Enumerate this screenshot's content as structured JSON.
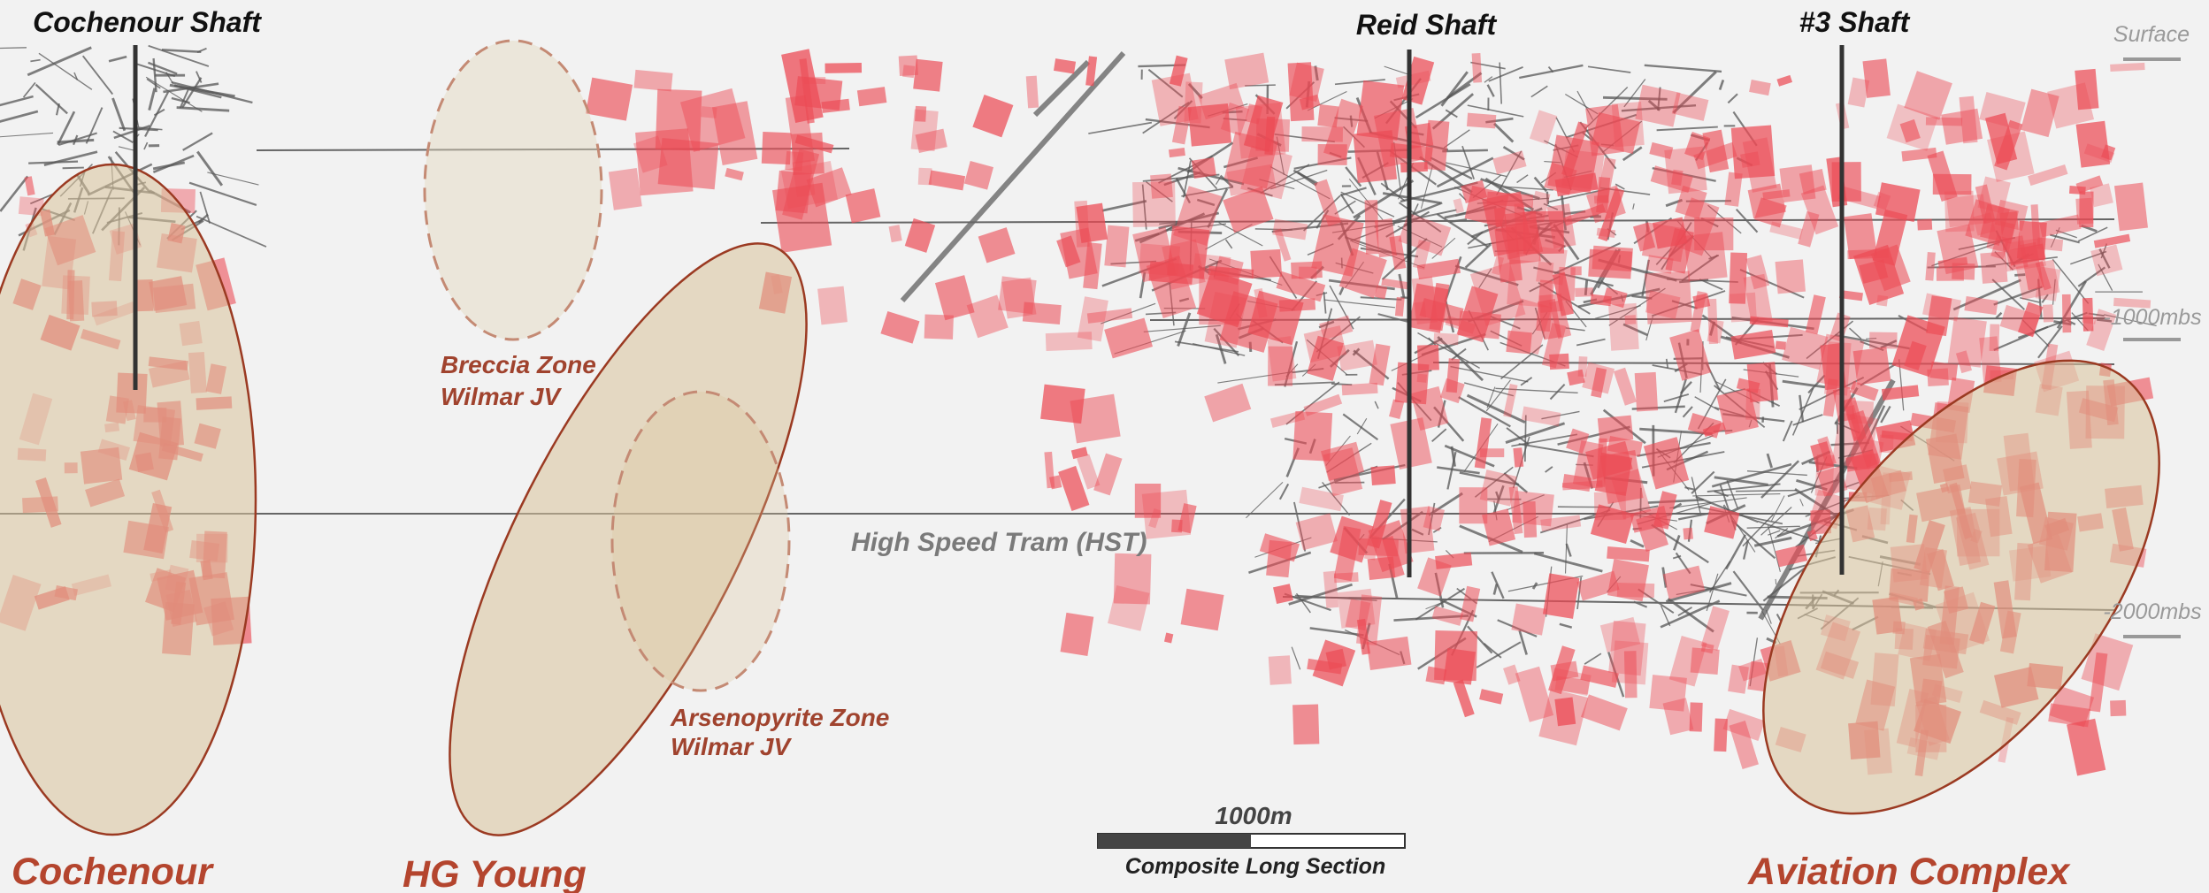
{
  "shafts": [
    "Cochenour Shaft",
    "Reid Shaft",
    "#3 Shaft"
  ],
  "depth_labels": [
    "Surface",
    "-1000mbs",
    "-2000mbs"
  ],
  "jv_zones": [
    {
      "name": "Breccia Zone",
      "owner": "Wilmar JV"
    },
    {
      "name": "Arsenopyrite Zone",
      "owner": "Wilmar JV"
    }
  ],
  "infrastructure": "High Speed Tram (HST)",
  "scale_bar": {
    "length": "1000m",
    "caption": "Composite Long Section"
  },
  "areas": [
    "Cochenour",
    "HG Young",
    "Aviation Complex"
  ]
}
